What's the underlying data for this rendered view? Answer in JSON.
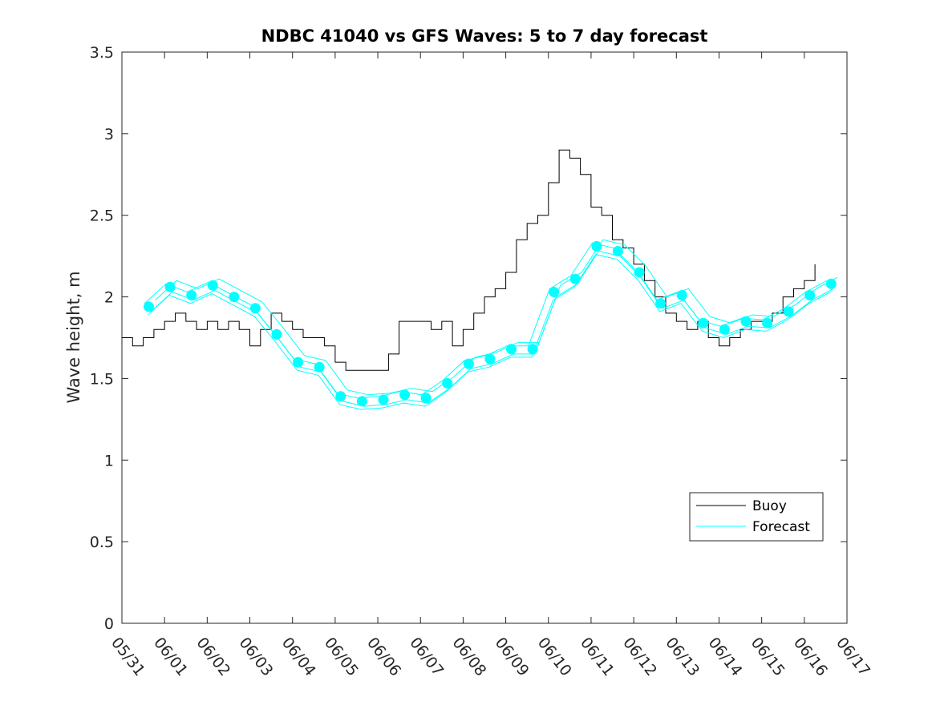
{
  "chart_data": {
    "type": "line",
    "title": "NDBC 41040 vs GFS Waves: 5 to 7 day forecast",
    "xlabel": "",
    "ylabel": "Wave height, m",
    "xlim": [
      0,
      17
    ],
    "ylim": [
      0,
      3.5
    ],
    "x_tick_labels": [
      "05/31",
      "06/01",
      "06/02",
      "06/03",
      "06/04",
      "06/05",
      "06/06",
      "06/07",
      "06/08",
      "06/09",
      "06/10",
      "06/11",
      "06/12",
      "06/13",
      "06/14",
      "06/15",
      "06/16",
      "06/17"
    ],
    "y_ticks": [
      0,
      0.5,
      1,
      1.5,
      2,
      2.5,
      3,
      3.5
    ],
    "y_tick_labels": [
      "0",
      "0.5",
      "1",
      "1.5",
      "2",
      "2.5",
      "3",
      "3.5"
    ],
    "grid": false,
    "legend_position": "bottom-right",
    "legend": [
      "Buoy",
      "Forecast"
    ],
    "colors": {
      "buoy": "#000000",
      "forecast": "#00ffff"
    },
    "series": [
      {
        "name": "Buoy",
        "x": [
          0.0,
          0.25,
          0.5,
          0.75,
          1.0,
          1.25,
          1.5,
          1.75,
          2.0,
          2.25,
          2.5,
          2.75,
          3.0,
          3.25,
          3.5,
          3.75,
          4.0,
          4.25,
          4.5,
          4.75,
          5.0,
          5.25,
          5.5,
          5.75,
          6.0,
          6.25,
          6.5,
          6.75,
          7.0,
          7.25,
          7.5,
          7.75,
          8.0,
          8.25,
          8.5,
          8.75,
          9.0,
          9.25,
          9.5,
          9.75,
          10.0,
          10.25,
          10.5,
          10.75,
          11.0,
          11.25,
          11.5,
          11.75,
          12.0,
          12.25,
          12.5,
          12.75,
          13.0,
          13.25,
          13.5,
          13.75,
          14.0,
          14.25,
          14.5,
          14.75,
          15.0,
          15.25,
          15.5,
          15.75,
          16.0,
          16.25
        ],
        "y": [
          1.75,
          1.7,
          1.75,
          1.8,
          1.85,
          1.9,
          1.85,
          1.8,
          1.85,
          1.8,
          1.85,
          1.8,
          1.7,
          1.8,
          1.9,
          1.85,
          1.8,
          1.75,
          1.75,
          1.7,
          1.6,
          1.55,
          1.55,
          1.55,
          1.55,
          1.65,
          1.85,
          1.85,
          1.85,
          1.8,
          1.85,
          1.7,
          1.8,
          1.9,
          2.0,
          2.05,
          2.15,
          2.35,
          2.45,
          2.5,
          2.7,
          2.9,
          2.85,
          2.75,
          2.55,
          2.5,
          2.35,
          2.3,
          2.2,
          2.1,
          2.0,
          1.9,
          1.85,
          1.8,
          1.85,
          1.75,
          1.7,
          1.75,
          1.8,
          1.85,
          1.85,
          1.9,
          2.0,
          2.05,
          2.1,
          2.2
        ]
      },
      {
        "name": "Forecast",
        "x": [
          0.63,
          1.13,
          1.63,
          2.13,
          2.63,
          3.13,
          3.63,
          4.13,
          4.63,
          5.13,
          5.63,
          6.13,
          6.63,
          7.13,
          7.63,
          8.13,
          8.63,
          9.13,
          9.63,
          10.13,
          10.63,
          11.13,
          11.63,
          12.13,
          12.63,
          13.13,
          13.63,
          14.13,
          14.63,
          15.13,
          15.63,
          16.13,
          16.63
        ],
        "y": [
          1.94,
          2.06,
          2.01,
          2.07,
          2.0,
          1.93,
          1.77,
          1.6,
          1.57,
          1.39,
          1.36,
          1.37,
          1.4,
          1.38,
          1.47,
          1.59,
          1.62,
          1.68,
          1.68,
          2.03,
          2.11,
          2.31,
          2.28,
          2.15,
          1.96,
          2.01,
          1.84,
          1.8,
          1.85,
          1.84,
          1.91,
          2.01,
          2.08
        ]
      }
    ]
  }
}
